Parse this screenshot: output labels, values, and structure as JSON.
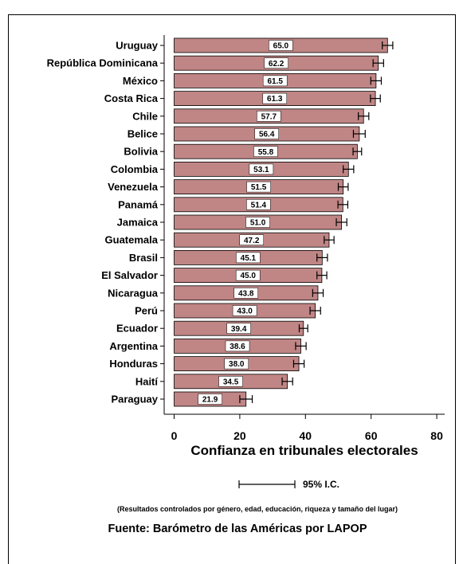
{
  "chart_data": {
    "type": "bar",
    "orientation": "horizontal",
    "categories": [
      "Uruguay",
      "República Dominicana",
      "México",
      "Costa Rica",
      "Chile",
      "Belice",
      "Bolivia",
      "Colombia",
      "Venezuela",
      "Panamá",
      "Jamaica",
      "Guatemala",
      "Brasil",
      "El Salvador",
      "Nicaragua",
      "Perú",
      "Ecuador",
      "Argentina",
      "Honduras",
      "Haití",
      "Paraguay"
    ],
    "values": [
      65.0,
      62.2,
      61.5,
      61.3,
      57.7,
      56.4,
      55.8,
      53.1,
      51.5,
      51.4,
      51.0,
      47.2,
      45.1,
      45.0,
      43.8,
      43.0,
      39.4,
      38.6,
      38.0,
      34.5,
      21.9
    ],
    "value_labels": [
      "65.0",
      "62.2",
      "61.5",
      "61.3",
      "57.7",
      "56.4",
      "55.8",
      "53.1",
      "51.5",
      "51.4",
      "51.0",
      "47.2",
      "45.1",
      "45.0",
      "43.8",
      "43.0",
      "39.4",
      "38.6",
      "38.0",
      "34.5",
      "21.9"
    ],
    "ci_halfwidth": [
      1.6,
      1.6,
      1.6,
      1.5,
      1.6,
      1.8,
      1.3,
      1.6,
      1.5,
      1.5,
      1.6,
      1.5,
      1.6,
      1.5,
      1.6,
      1.6,
      1.3,
      1.6,
      1.6,
      1.6,
      1.9
    ],
    "xlabel": "Confianza en tribunales electorales",
    "xlim": [
      -1,
      82
    ],
    "xticks": [
      0,
      20,
      40,
      60,
      80
    ],
    "bar_color": "#c08585",
    "legend_label": "95% I.C."
  },
  "footnote": "(Resultados controlados por género, edad, educación, riqueza y tamaño del lugar)",
  "source": "Fuente: Barómetro de las Américas por  LAPOP"
}
